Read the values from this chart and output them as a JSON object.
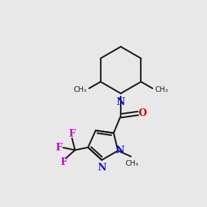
{
  "bg_color": "#e8e8e8",
  "bond_color": "#1a1a1a",
  "N_color": "#1010dd",
  "O_color": "#cc0000",
  "F_color": "#cc00cc",
  "line_width": 1.6,
  "font_size_atom": 10,
  "figsize": [
    3.0,
    3.0
  ],
  "dpi": 100,
  "xlim": [
    0,
    10
  ],
  "ylim": [
    0,
    10
  ]
}
